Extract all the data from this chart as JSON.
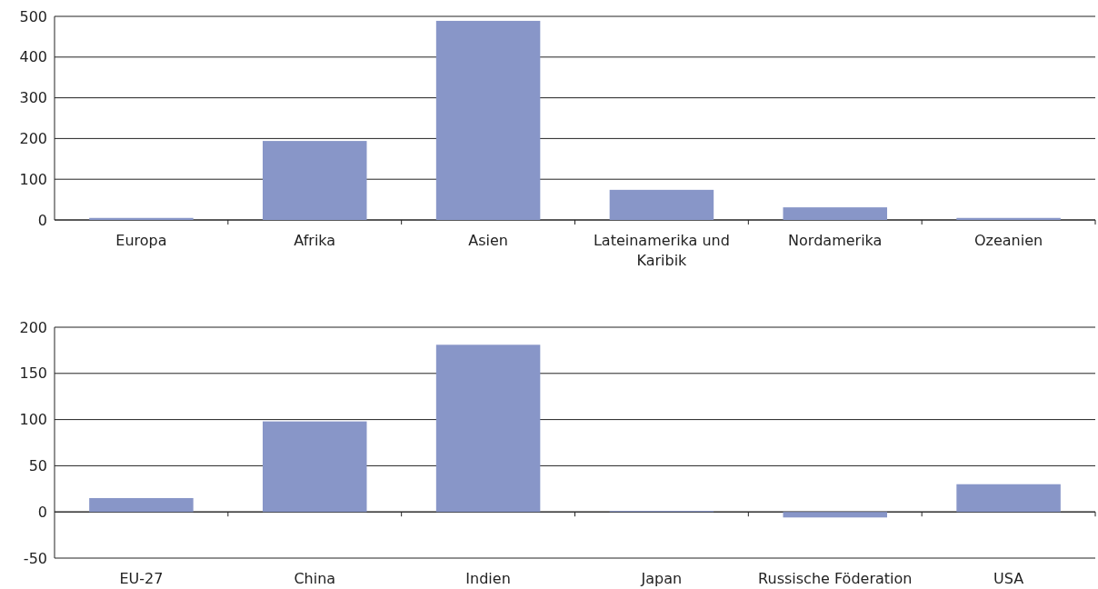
{
  "chart_data": [
    {
      "type": "bar",
      "categories": [
        "Europa",
        "Afrika",
        "Asien",
        "Lateinamerika und Karibik",
        "Nordamerika",
        "Ozeanien"
      ],
      "values": [
        5,
        194,
        489,
        74,
        31,
        5
      ],
      "color": "#8896c8",
      "ylim": [
        0,
        500
      ],
      "yticks": [
        0,
        100,
        200,
        300,
        400,
        500
      ],
      "grid": "y"
    },
    {
      "type": "bar",
      "categories": [
        "EU-27",
        "China",
        "Indien",
        "Japan",
        "Russische Föderation",
        "USA"
      ],
      "values": [
        15,
        98,
        181,
        1,
        -6,
        30
      ],
      "color": "#8896c8",
      "ylim": [
        -50,
        200
      ],
      "yticks": [
        -50,
        0,
        50,
        100,
        150,
        200
      ],
      "grid": "y"
    }
  ]
}
